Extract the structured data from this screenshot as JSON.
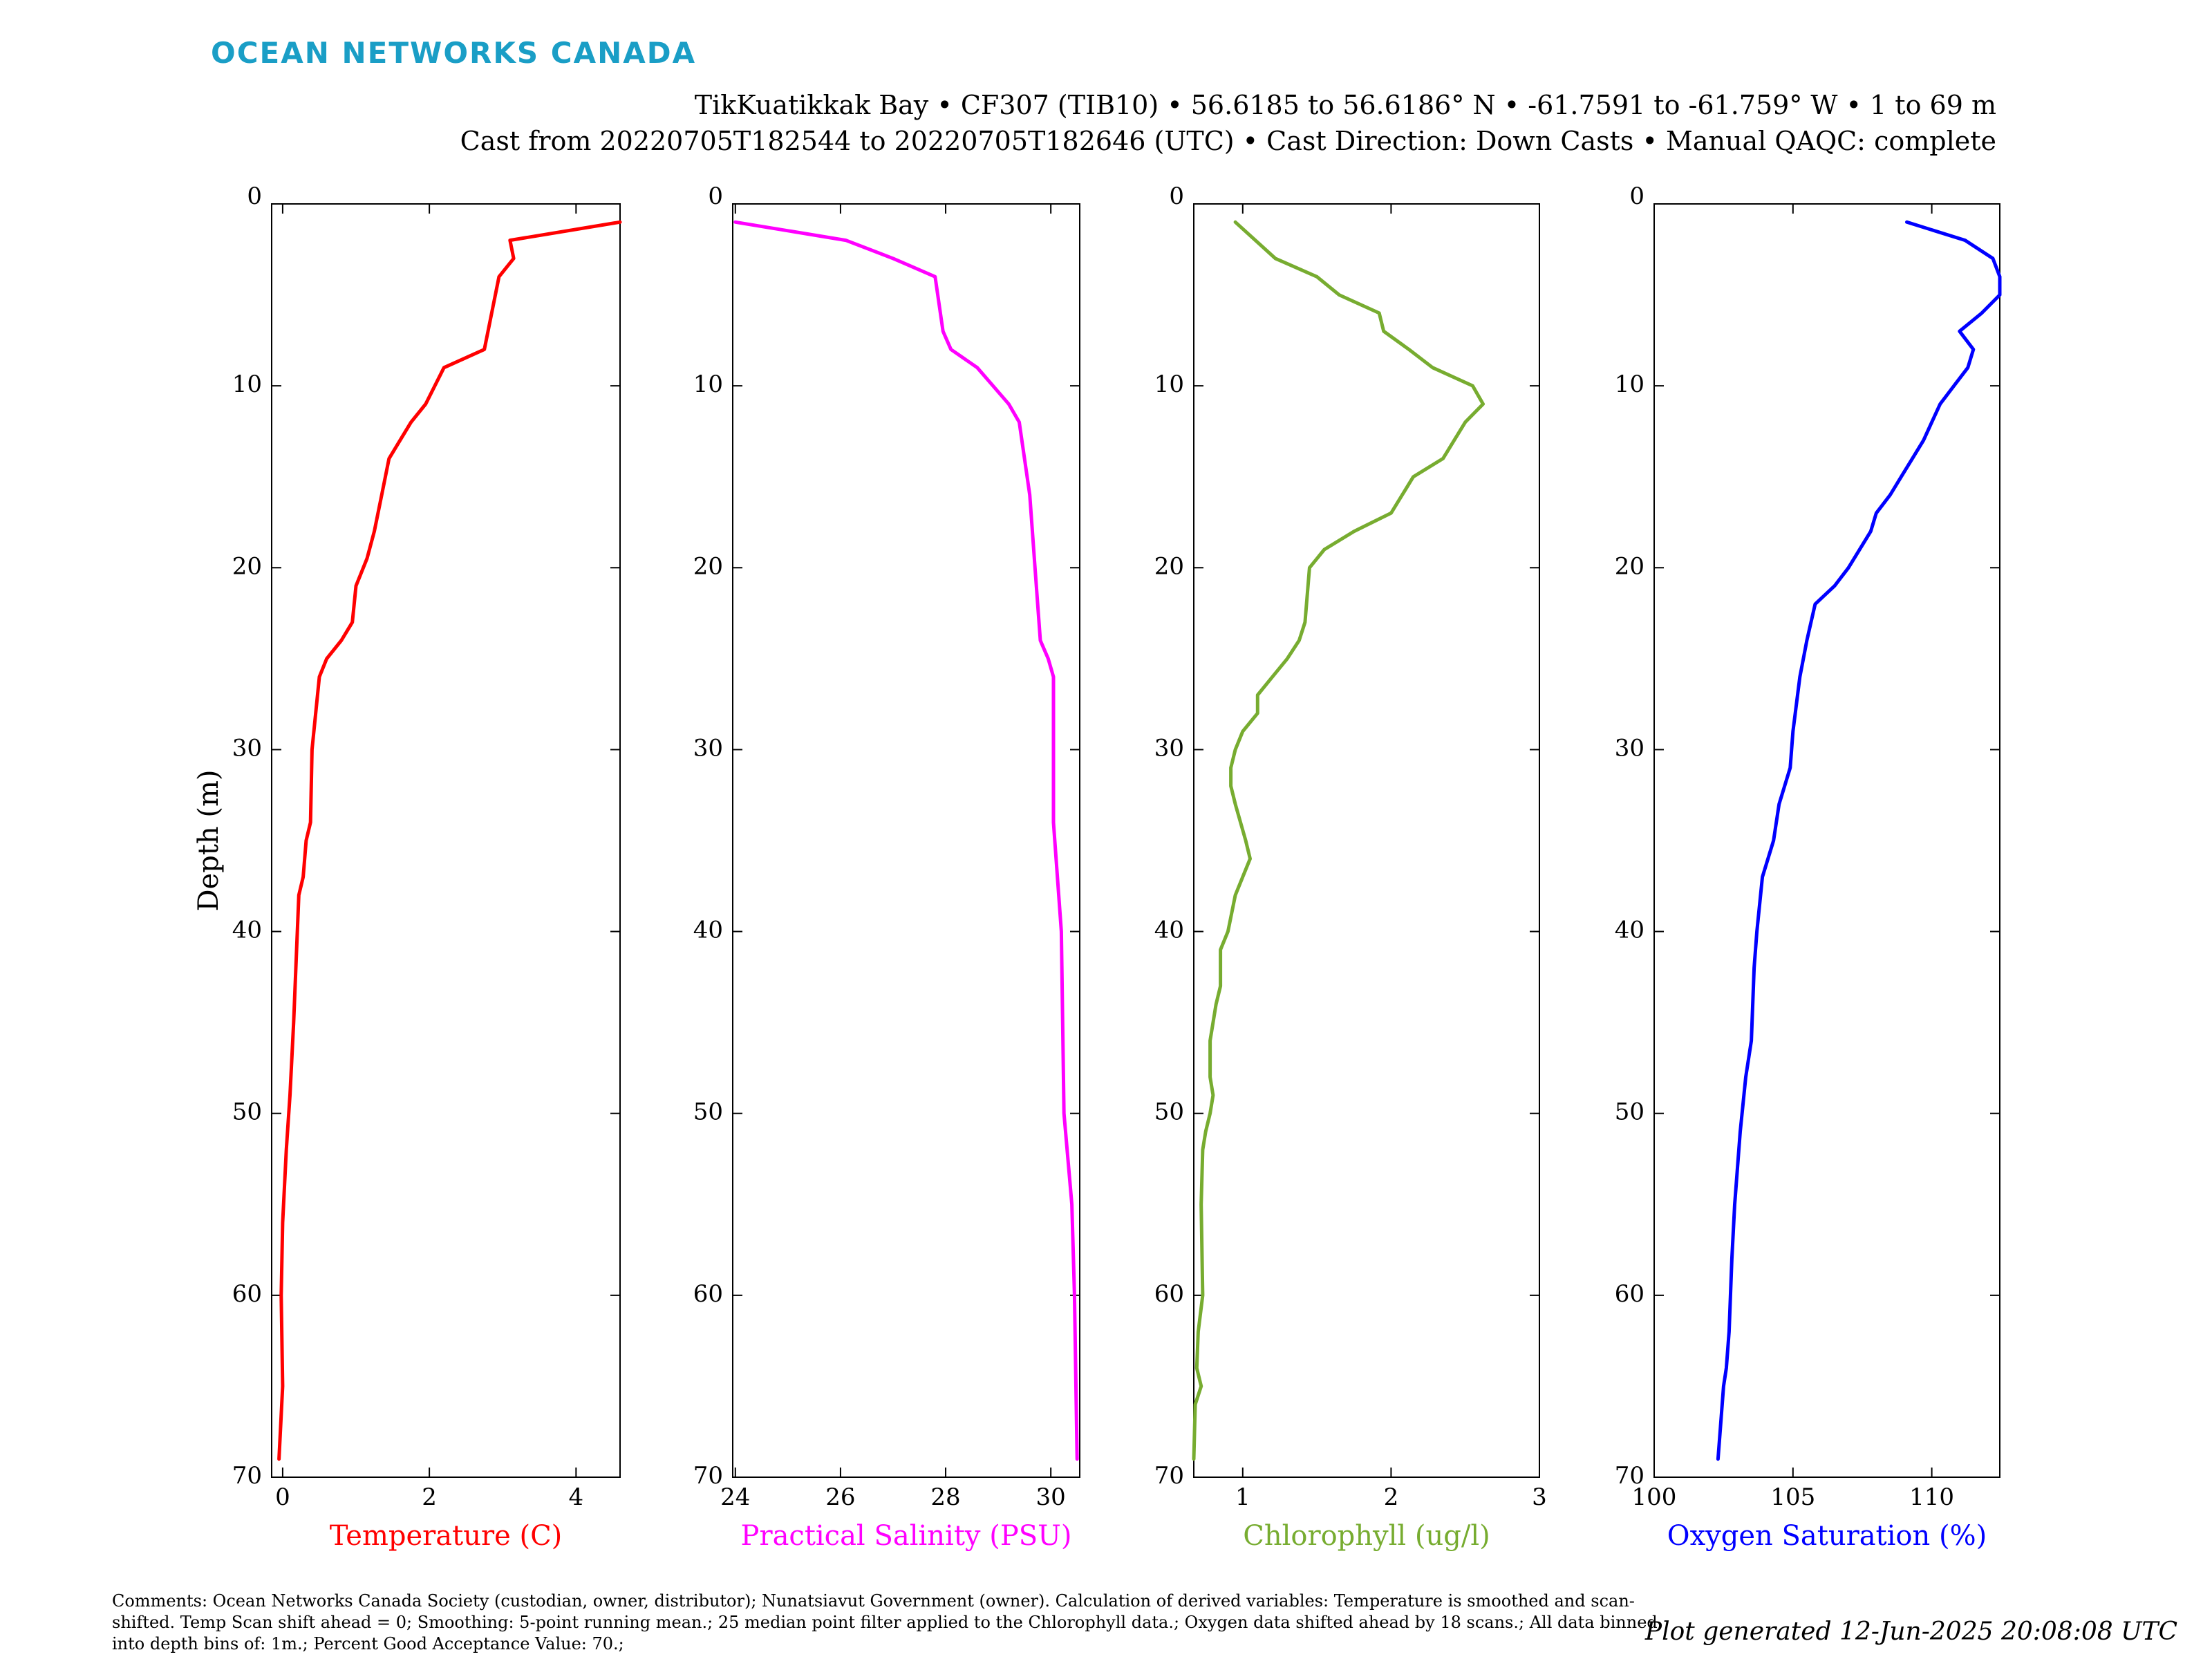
{
  "header": {
    "logo_text": "OCEAN NETWORKS CANADA",
    "title_line1": "TikKuatikkak Bay • CF307 (TIB10) • 56.6185 to 56.6186° N • -61.7591 to -61.759° W • 1 to 69 m",
    "title_line2": "Cast from 20220705T182544 to 20220705T182646 (UTC) • Cast Direction: Down Casts • Manual QAQC: complete"
  },
  "footer": {
    "comments": "Comments: Ocean Networks Canada Society (custodian, owner, distributor); Nunatsiavut Government (owner). Calculation of derived variables: Temperature is smoothed and scan-shifted. Temp Scan shift ahead = 0; Smoothing: 5-point running mean.; 25 median point filter applied to the Chlorophyll data.; Oxygen data shifted ahead by 18 scans.; All data binned into depth bins of: 1m.; Percent Good Acceptance Value: 70.;",
    "generated": "Plot generated 12-Jun-2025 20:08:08 UTC"
  },
  "colors": {
    "logo": "#1a9ec6",
    "temperature": "#ff0000",
    "salinity": "#ff00ff",
    "chlorophyll": "#77ac30",
    "oxygen": "#0000ff"
  },
  "chart_data": {
    "type": "line",
    "depth_label": "Depth (m)",
    "depth_range": [
      0,
      70
    ],
    "depth_ticks": [
      0,
      10,
      20,
      30,
      40,
      50,
      60,
      70
    ],
    "grid": false,
    "panels": [
      {
        "xlabel": "Temperature (C)",
        "color_key": "temperature",
        "xlim": [
          -0.15,
          4.6
        ],
        "xticks": [
          0,
          2,
          4
        ],
        "points": [
          [
            4.6,
            1
          ],
          [
            3.1,
            2
          ],
          [
            3.15,
            3
          ],
          [
            2.95,
            4
          ],
          [
            2.85,
            6
          ],
          [
            2.8,
            7
          ],
          [
            2.75,
            8
          ],
          [
            2.2,
            9
          ],
          [
            1.95,
            11
          ],
          [
            1.75,
            12
          ],
          [
            1.6,
            13
          ],
          [
            1.45,
            14
          ],
          [
            1.35,
            16
          ],
          [
            1.25,
            18
          ],
          [
            1.15,
            19.5
          ],
          [
            1.0,
            21
          ],
          [
            0.95,
            23
          ],
          [
            0.8,
            24
          ],
          [
            0.6,
            25
          ],
          [
            0.5,
            26
          ],
          [
            0.45,
            28
          ],
          [
            0.4,
            30
          ],
          [
            0.38,
            34
          ],
          [
            0.32,
            35
          ],
          [
            0.28,
            37
          ],
          [
            0.22,
            38
          ],
          [
            0.18,
            42
          ],
          [
            0.15,
            45
          ],
          [
            0.1,
            49
          ],
          [
            0.05,
            52
          ],
          [
            0.0,
            56
          ],
          [
            -0.02,
            60
          ],
          [
            0.0,
            65
          ],
          [
            -0.05,
            69
          ]
        ]
      },
      {
        "xlabel": "Practical Salinity (PSU)",
        "color_key": "salinity",
        "xlim": [
          23.95,
          30.55
        ],
        "xticks": [
          24,
          26,
          28,
          30
        ],
        "points": [
          [
            24.0,
            1
          ],
          [
            26.1,
            2
          ],
          [
            27.0,
            3
          ],
          [
            27.8,
            4
          ],
          [
            27.95,
            7
          ],
          [
            28.1,
            8
          ],
          [
            28.6,
            9
          ],
          [
            28.9,
            10
          ],
          [
            29.2,
            11
          ],
          [
            29.4,
            12
          ],
          [
            29.5,
            14
          ],
          [
            29.6,
            16
          ],
          [
            29.7,
            20
          ],
          [
            29.8,
            24
          ],
          [
            29.95,
            25
          ],
          [
            30.05,
            26
          ],
          [
            30.05,
            34
          ],
          [
            30.2,
            40
          ],
          [
            30.25,
            50
          ],
          [
            30.4,
            55
          ],
          [
            30.45,
            60
          ],
          [
            30.5,
            69
          ]
        ]
      },
      {
        "xlabel": "Chlorophyll (ug/l)",
        "color_key": "chlorophyll",
        "xlim": [
          0.67,
          3.0
        ],
        "xticks": [
          1,
          2,
          3
        ],
        "points": [
          [
            0.95,
            1
          ],
          [
            1.22,
            3
          ],
          [
            1.5,
            4
          ],
          [
            1.65,
            5
          ],
          [
            1.92,
            6
          ],
          [
            1.95,
            7
          ],
          [
            2.12,
            8
          ],
          [
            2.28,
            9
          ],
          [
            2.55,
            10
          ],
          [
            2.62,
            11
          ],
          [
            2.5,
            12
          ],
          [
            2.35,
            14
          ],
          [
            2.15,
            15
          ],
          [
            2.0,
            17
          ],
          [
            1.75,
            18
          ],
          [
            1.55,
            19
          ],
          [
            1.45,
            20
          ],
          [
            1.42,
            23
          ],
          [
            1.38,
            24
          ],
          [
            1.3,
            25
          ],
          [
            1.2,
            26
          ],
          [
            1.1,
            27
          ],
          [
            1.1,
            28
          ],
          [
            1.05,
            28.5
          ],
          [
            1.0,
            29
          ],
          [
            0.95,
            30
          ],
          [
            0.92,
            31
          ],
          [
            0.92,
            32
          ],
          [
            0.95,
            33
          ],
          [
            1.02,
            35
          ],
          [
            1.05,
            36
          ],
          [
            1.0,
            37
          ],
          [
            0.95,
            38
          ],
          [
            0.9,
            40
          ],
          [
            0.85,
            41
          ],
          [
            0.85,
            43
          ],
          [
            0.82,
            44
          ],
          [
            0.8,
            45
          ],
          [
            0.78,
            46
          ],
          [
            0.78,
            48
          ],
          [
            0.8,
            49
          ],
          [
            0.78,
            50
          ],
          [
            0.75,
            51
          ],
          [
            0.73,
            52
          ],
          [
            0.72,
            55
          ],
          [
            0.73,
            60
          ],
          [
            0.7,
            62
          ],
          [
            0.69,
            64
          ],
          [
            0.72,
            65
          ],
          [
            0.68,
            66
          ],
          [
            0.67,
            69
          ]
        ]
      },
      {
        "xlabel": "Oxygen Saturation (%)",
        "color_key": "oxygen",
        "xlim": [
          100,
          112.45
        ],
        "xticks": [
          100,
          105,
          110
        ],
        "points": [
          [
            109.1,
            1
          ],
          [
            111.2,
            2
          ],
          [
            112.2,
            3
          ],
          [
            112.45,
            4
          ],
          [
            112.45,
            5
          ],
          [
            111.8,
            6
          ],
          [
            111.0,
            7
          ],
          [
            111.5,
            8
          ],
          [
            111.3,
            9
          ],
          [
            110.8,
            10
          ],
          [
            110.3,
            11
          ],
          [
            110.0,
            12
          ],
          [
            109.7,
            13
          ],
          [
            109.3,
            14
          ],
          [
            108.9,
            15
          ],
          [
            108.5,
            16
          ],
          [
            108.0,
            17
          ],
          [
            107.8,
            18
          ],
          [
            107.0,
            20
          ],
          [
            106.5,
            21
          ],
          [
            105.8,
            22
          ],
          [
            105.5,
            24
          ],
          [
            105.25,
            26
          ],
          [
            105.0,
            29
          ],
          [
            104.9,
            31
          ],
          [
            104.5,
            33
          ],
          [
            104.3,
            35
          ],
          [
            103.9,
            37
          ],
          [
            103.7,
            40
          ],
          [
            103.6,
            42
          ],
          [
            103.5,
            46
          ],
          [
            103.3,
            48
          ],
          [
            103.1,
            51
          ],
          [
            102.9,
            55
          ],
          [
            102.8,
            58
          ],
          [
            102.7,
            62
          ],
          [
            102.6,
            64
          ],
          [
            102.5,
            65
          ],
          [
            102.3,
            69
          ]
        ]
      }
    ]
  }
}
